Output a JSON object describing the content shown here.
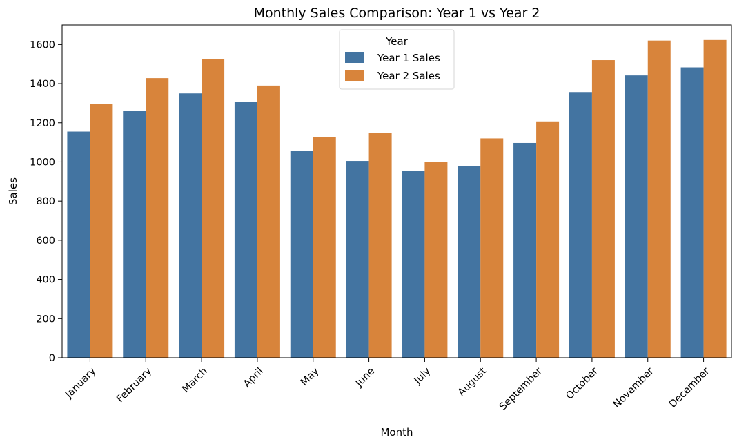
{
  "chart_data": {
    "type": "bar",
    "title": "Monthly Sales Comparison: Year 1 vs Year 2",
    "xlabel": "Month",
    "ylabel": "Sales",
    "ylim": [
      0,
      1700
    ],
    "yticks": [
      0,
      200,
      400,
      600,
      800,
      1000,
      1200,
      1400,
      1600
    ],
    "categories": [
      "January",
      "February",
      "March",
      "April",
      "May",
      "June",
      "July",
      "August",
      "September",
      "October",
      "November",
      "December"
    ],
    "series": [
      {
        "name": "Year 1 Sales",
        "color": "#4374a1",
        "values": [
          1155,
          1260,
          1350,
          1305,
          1057,
          1005,
          955,
          978,
          1097,
          1357,
          1442,
          1483
        ]
      },
      {
        "name": "Year 2 Sales",
        "color": "#d8843b",
        "values": [
          1297,
          1428,
          1527,
          1390,
          1128,
          1147,
          1000,
          1120,
          1207,
          1520,
          1620,
          1623
        ]
      }
    ],
    "legend": {
      "title": "Year",
      "position": "top-center"
    },
    "grid": false
  }
}
